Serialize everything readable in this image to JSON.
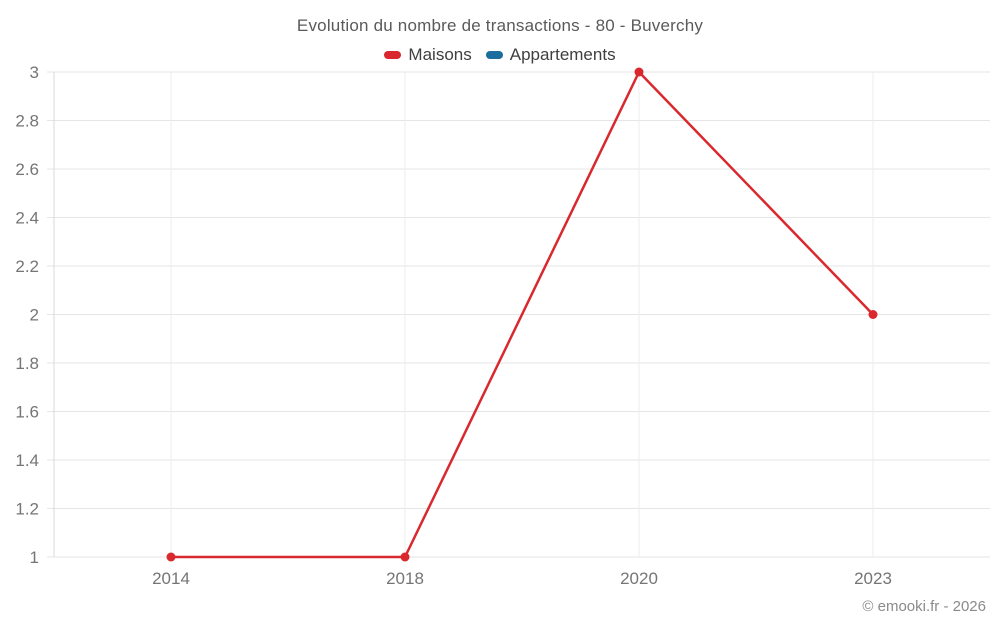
{
  "chart": {
    "title": "Evolution du nombre de transactions - 80 - Buverchy"
  },
  "footer": {
    "copyright": "© emooki.fr - 2026"
  },
  "chart_data": {
    "type": "line",
    "title": "Evolution du nombre de transactions - 80 - Buverchy",
    "categories": [
      "2014",
      "2018",
      "2020",
      "2023"
    ],
    "series": [
      {
        "name": "Maisons",
        "color": "#d9292e",
        "values": [
          1,
          1,
          3,
          2
        ]
      },
      {
        "name": "Appartements",
        "color": "#1a6d9c",
        "values": []
      }
    ],
    "xlabel": "",
    "ylabel": "",
    "ylim": [
      1,
      3
    ],
    "yticks": [
      1,
      1.2,
      1.4,
      1.6,
      1.8,
      2,
      2.2,
      2.4,
      2.6,
      2.8,
      3
    ],
    "ytick_labels": [
      "1",
      "1.2",
      "1.4",
      "1.6",
      "1.8",
      "2",
      "2.2",
      "2.4",
      "2.6",
      "2.8",
      "3"
    ],
    "grid": "both",
    "legend_position": "top",
    "colors": {
      "grid_line": "#e6e6e6",
      "vertical_grid_line": "#ececec",
      "axis_border": "#d9d9d9",
      "tick_label": "#757575"
    }
  }
}
